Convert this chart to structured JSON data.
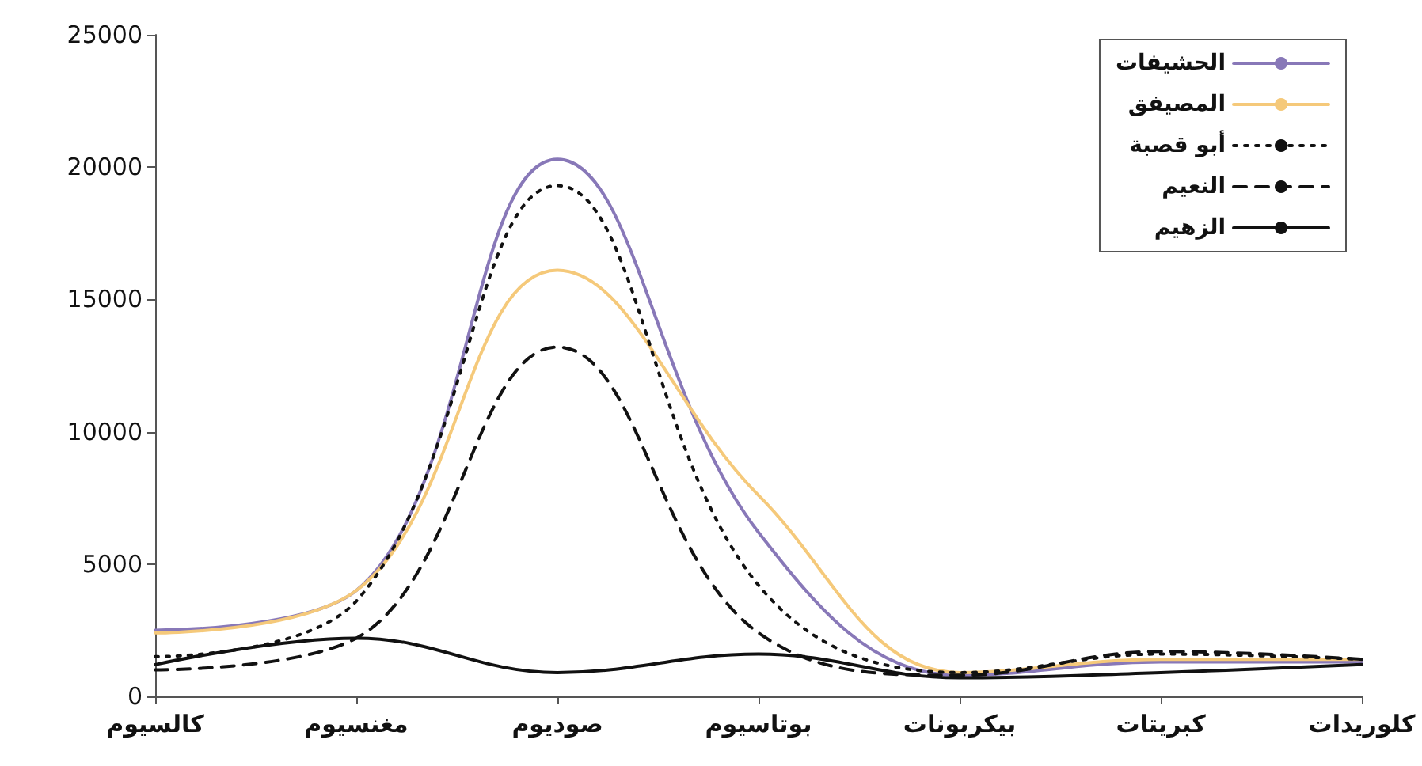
{
  "chart_data": {
    "type": "line",
    "categories": [
      "كالسيوم",
      "مغنسيوم",
      "صوديوم",
      "بوتاسيوم",
      "بيكربونات",
      "كبريتات",
      "كلوريدات"
    ],
    "series": [
      {
        "name": "الحشيفات",
        "color": "#8878b8",
        "line_style": "solid",
        "values": [
          2500,
          4000,
          20300,
          6200,
          800,
          1300,
          1300
        ]
      },
      {
        "name": "المصيفق",
        "color": "#f5c97a",
        "line_style": "solid",
        "values": [
          2400,
          4000,
          16100,
          7600,
          900,
          1400,
          1400
        ]
      },
      {
        "name": "أبو قصبة",
        "color": "#111111",
        "line_style": "dotted",
        "values": [
          1500,
          3600,
          19300,
          4200,
          900,
          1600,
          1400
        ]
      },
      {
        "name": "النعيم",
        "color": "#111111",
        "line_style": "dashed",
        "values": [
          1000,
          2200,
          13200,
          2400,
          800,
          1700,
          1400
        ]
      },
      {
        "name": "الزهيم",
        "color": "#111111",
        "line_style": "solid",
        "values": [
          1200,
          2200,
          900,
          1600,
          700,
          900,
          1200
        ]
      }
    ],
    "ylim": [
      0,
      25000
    ],
    "yticks": [
      0,
      5000,
      10000,
      15000,
      20000,
      25000
    ],
    "grid": false,
    "legend": "top right",
    "marker": "none"
  }
}
